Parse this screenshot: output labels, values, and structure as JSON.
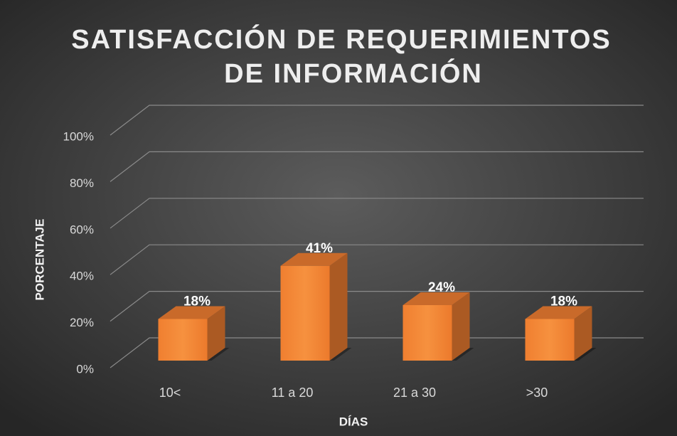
{
  "chart_data": {
    "type": "bar3d",
    "title": [
      "SATISFACCIÓN  DE REQUERIMIENTOS",
      "DE INFORMACIÓN"
    ],
    "x_label": "DÍAS",
    "y_label": "PORCENTAJE",
    "categories": [
      "10<",
      "11 a 20",
      "21 a 30",
      ">30"
    ],
    "values": [
      18,
      41,
      24,
      18
    ],
    "value_labels": [
      "18%",
      "41%",
      "24%",
      "18%"
    ],
    "color": "#ed7d31",
    "ylim": [
      0,
      100
    ],
    "yticks": [
      {
        "value": 0,
        "label": "0%"
      },
      {
        "value": 20,
        "label": "20%"
      },
      {
        "value": 40,
        "label": "40%"
      },
      {
        "value": 60,
        "label": "60%"
      },
      {
        "value": 80,
        "label": "80%"
      },
      {
        "value": 100,
        "label": "100%"
      }
    ],
    "grid": true
  }
}
